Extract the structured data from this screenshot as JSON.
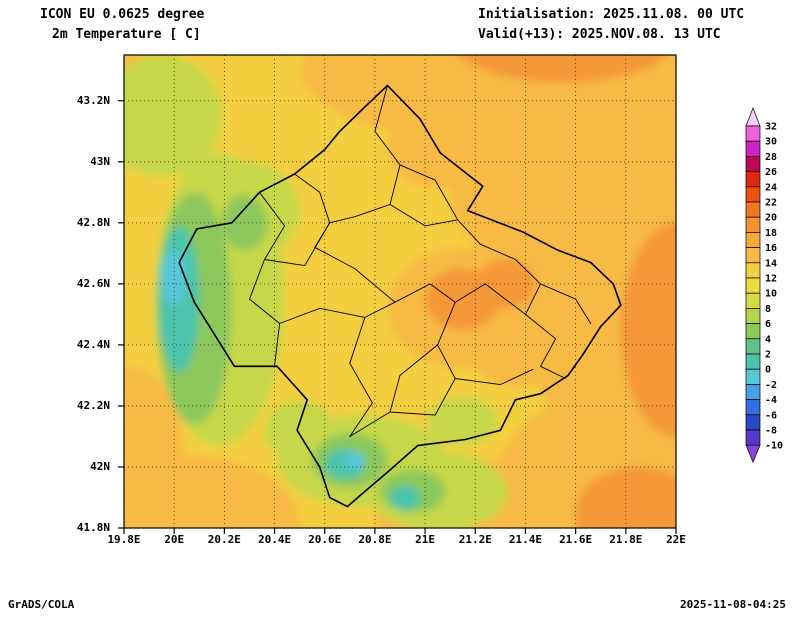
{
  "header": {
    "title_line1": "ICON EU 0.0625 degree",
    "title_line2": "2m Temperature [ C]",
    "init_line": "Initialisation: 2025.11.08. 00 UTC",
    "valid_line": "Valid(+13): 2025.NOV.08. 13 UTC"
  },
  "footer": {
    "left": "GrADS/COLA",
    "right": "2025-11-08-04:25"
  },
  "axes": {
    "lon_range": [
      19.8,
      22.0
    ],
    "lat_range": [
      41.8,
      43.35
    ],
    "lat_ticks": [
      {
        "label": "43.2N",
        "value": 43.2
      },
      {
        "label": "43N",
        "value": 43.0
      },
      {
        "label": "42.8N",
        "value": 42.8
      },
      {
        "label": "42.6N",
        "value": 42.6
      },
      {
        "label": "42.4N",
        "value": 42.4
      },
      {
        "label": "42.2N",
        "value": 42.2
      },
      {
        "label": "42N",
        "value": 42.0
      },
      {
        "label": "41.8N",
        "value": 41.8
      }
    ],
    "lon_ticks": [
      {
        "label": "19.8E",
        "value": 19.8
      },
      {
        "label": "20E",
        "value": 20.0
      },
      {
        "label": "20.2E",
        "value": 20.2
      },
      {
        "label": "20.4E",
        "value": 20.4
      },
      {
        "label": "20.6E",
        "value": 20.6
      },
      {
        "label": "20.8E",
        "value": 20.8
      },
      {
        "label": "21E",
        "value": 21.0
      },
      {
        "label": "21.2E",
        "value": 21.2
      },
      {
        "label": "21.4E",
        "value": 21.4
      },
      {
        "label": "21.6E",
        "value": 21.6
      },
      {
        "label": "21.8E",
        "value": 21.8
      },
      {
        "label": "22E",
        "value": 22.0
      }
    ]
  },
  "colorbar": {
    "labels": [
      "32",
      "30",
      "28",
      "26",
      "24",
      "22",
      "20",
      "18",
      "16",
      "14",
      "12",
      "10",
      "8",
      "6",
      "4",
      "2",
      "0",
      "-2",
      "-4",
      "-6",
      "-8",
      "-10"
    ],
    "top_triangle_color": "#f8ccf8",
    "bottom_triangle_color": "#8844d8",
    "segments": [
      {
        "from": 30,
        "to": 32,
        "color": "#f060d8"
      },
      {
        "from": 28,
        "to": 30,
        "color": "#cc22cc"
      },
      {
        "from": 26,
        "to": 28,
        "color": "#c00858"
      },
      {
        "from": 24,
        "to": 26,
        "color": "#e02810"
      },
      {
        "from": 22,
        "to": 24,
        "color": "#ee5014"
      },
      {
        "from": 20,
        "to": 22,
        "color": "#f07820"
      },
      {
        "from": 18,
        "to": 20,
        "color": "#f39030"
      },
      {
        "from": 16,
        "to": 18,
        "color": "#f7a83c"
      },
      {
        "from": 14,
        "to": 16,
        "color": "#f7ba44"
      },
      {
        "from": 12,
        "to": 14,
        "color": "#f3cf40"
      },
      {
        "from": 10,
        "to": 12,
        "color": "#ecdc3c"
      },
      {
        "from": 8,
        "to": 10,
        "color": "#d6da44"
      },
      {
        "from": 6,
        "to": 8,
        "color": "#b4d44e"
      },
      {
        "from": 4,
        "to": 6,
        "color": "#8cc85c"
      },
      {
        "from": 2,
        "to": 4,
        "color": "#64c088"
      },
      {
        "from": 0,
        "to": 2,
        "color": "#4cc4ac"
      },
      {
        "from": -2,
        "to": 0,
        "color": "#58c8d8"
      },
      {
        "from": -4,
        "to": -2,
        "color": "#48a0e8"
      },
      {
        "from": -6,
        "to": -4,
        "color": "#3070e0"
      },
      {
        "from": -8,
        "to": -6,
        "color": "#2848c8"
      },
      {
        "from": -10,
        "to": -8,
        "color": "#5838c8"
      }
    ]
  },
  "map": {
    "base_color": "#f3cf40",
    "blobs": [
      {
        "lon": 20.8,
        "lat": 43.32,
        "rx": 0.28,
        "ry": 0.16,
        "color": "#f7ba44"
      },
      {
        "lon": 21.4,
        "lat": 43.3,
        "rx": 0.9,
        "ry": 0.25,
        "color": "#f7ba44"
      },
      {
        "lon": 19.85,
        "lat": 43.33,
        "rx": 0.16,
        "ry": 0.09,
        "color": "#f7ba44"
      },
      {
        "lon": 21.95,
        "lat": 42.6,
        "rx": 0.55,
        "ry": 0.75,
        "color": "#f7ba44"
      },
      {
        "lon": 21.45,
        "lat": 42.9,
        "rx": 0.35,
        "ry": 0.25,
        "color": "#f7ba44"
      },
      {
        "lon": 21.05,
        "lat": 43.05,
        "rx": 0.2,
        "ry": 0.14,
        "color": "#f7ba44"
      },
      {
        "lon": 21.15,
        "lat": 42.52,
        "rx": 0.3,
        "ry": 0.2,
        "color": "#f7ba44"
      },
      {
        "lon": 21.38,
        "lat": 42.42,
        "rx": 0.22,
        "ry": 0.16,
        "color": "#f7ba44"
      },
      {
        "lon": 21.78,
        "lat": 41.95,
        "rx": 0.5,
        "ry": 0.3,
        "color": "#f7ba44"
      },
      {
        "lon": 21.2,
        "lat": 41.85,
        "rx": 0.4,
        "ry": 0.18,
        "color": "#f7ba44"
      },
      {
        "lon": 20.05,
        "lat": 41.82,
        "rx": 0.45,
        "ry": 0.22,
        "color": "#f7ba44"
      },
      {
        "lon": 19.82,
        "lat": 42.05,
        "rx": 0.22,
        "ry": 0.28,
        "color": "#f7ba44"
      },
      {
        "lon": 21.55,
        "lat": 43.4,
        "rx": 0.45,
        "ry": 0.14,
        "color": "#f49838"
      },
      {
        "lon": 21.15,
        "lat": 42.55,
        "rx": 0.15,
        "ry": 0.1,
        "color": "#f49838"
      },
      {
        "lon": 21.32,
        "lat": 42.6,
        "rx": 0.12,
        "ry": 0.08,
        "color": "#f49838"
      },
      {
        "lon": 22.0,
        "lat": 42.45,
        "rx": 0.22,
        "ry": 0.35,
        "color": "#f49838"
      },
      {
        "lon": 21.85,
        "lat": 41.85,
        "rx": 0.25,
        "ry": 0.15,
        "color": "#f49838"
      },
      {
        "lon": 20.18,
        "lat": 42.55,
        "rx": 0.26,
        "ry": 0.48,
        "color": "#c6d74a"
      },
      {
        "lon": 20.3,
        "lat": 42.84,
        "rx": 0.2,
        "ry": 0.16,
        "color": "#c6d74a"
      },
      {
        "lon": 19.95,
        "lat": 43.15,
        "rx": 0.24,
        "ry": 0.2,
        "color": "#c6d74a"
      },
      {
        "lon": 20.75,
        "lat": 42.02,
        "rx": 0.34,
        "ry": 0.15,
        "color": "#c6d74a"
      },
      {
        "lon": 21.05,
        "lat": 41.92,
        "rx": 0.28,
        "ry": 0.13,
        "color": "#c6d74a"
      },
      {
        "lon": 20.5,
        "lat": 42.12,
        "rx": 0.14,
        "ry": 0.1,
        "color": "#c6d74a"
      },
      {
        "lon": 21.15,
        "lat": 42.15,
        "rx": 0.14,
        "ry": 0.08,
        "color": "#c6d74a"
      },
      {
        "lon": 20.08,
        "lat": 42.52,
        "rx": 0.15,
        "ry": 0.38,
        "color": "#8cc85c"
      },
      {
        "lon": 20.28,
        "lat": 42.8,
        "rx": 0.09,
        "ry": 0.09,
        "color": "#8cc85c"
      },
      {
        "lon": 20.7,
        "lat": 42.02,
        "rx": 0.15,
        "ry": 0.09,
        "color": "#8cc85c"
      },
      {
        "lon": 20.95,
        "lat": 41.92,
        "rx": 0.13,
        "ry": 0.07,
        "color": "#8cc85c"
      },
      {
        "lon": 20.02,
        "lat": 42.55,
        "rx": 0.08,
        "ry": 0.24,
        "color": "#4cc4ac"
      },
      {
        "lon": 20.68,
        "lat": 42.01,
        "rx": 0.08,
        "ry": 0.05,
        "color": "#4cc4ac"
      },
      {
        "lon": 20.92,
        "lat": 41.9,
        "rx": 0.06,
        "ry": 0.04,
        "color": "#4cc4ac"
      },
      {
        "lon": 20.0,
        "lat": 42.62,
        "rx": 0.05,
        "ry": 0.09,
        "color": "#58c8d8"
      },
      {
        "lon": 20.72,
        "lat": 42.02,
        "rx": 0.04,
        "ry": 0.03,
        "color": "#58c8d8"
      }
    ],
    "border": [
      [
        20.85,
        43.25
      ],
      [
        20.98,
        43.14
      ],
      [
        21.06,
        43.03
      ],
      [
        21.23,
        42.92
      ],
      [
        21.17,
        42.84
      ],
      [
        21.39,
        42.77
      ],
      [
        21.53,
        42.71
      ],
      [
        21.66,
        42.67
      ],
      [
        21.75,
        42.6
      ],
      [
        21.78,
        42.53
      ],
      [
        21.7,
        42.46
      ],
      [
        21.63,
        42.37
      ],
      [
        21.57,
        42.3
      ],
      [
        21.46,
        42.24
      ],
      [
        21.36,
        42.22
      ],
      [
        21.3,
        42.12
      ],
      [
        21.16,
        42.09
      ],
      [
        20.97,
        42.07
      ],
      [
        20.86,
        41.99
      ],
      [
        20.76,
        41.92
      ],
      [
        20.69,
        41.87
      ],
      [
        20.62,
        41.9
      ],
      [
        20.58,
        42.0
      ],
      [
        20.49,
        42.12
      ],
      [
        20.53,
        42.22
      ],
      [
        20.41,
        42.33
      ],
      [
        20.24,
        42.33
      ],
      [
        20.08,
        42.54
      ],
      [
        20.02,
        42.67
      ],
      [
        20.09,
        42.78
      ],
      [
        20.23,
        42.8
      ],
      [
        20.34,
        42.9
      ],
      [
        20.48,
        42.96
      ],
      [
        20.6,
        43.04
      ],
      [
        20.66,
        43.1
      ],
      [
        20.76,
        43.18
      ]
    ],
    "internal_borders": [
      [
        [
          20.85,
          43.25
        ],
        [
          20.8,
          43.1
        ],
        [
          20.9,
          42.99
        ],
        [
          20.86,
          42.86
        ]
      ],
      [
        [
          20.48,
          42.96
        ],
        [
          20.58,
          42.9
        ],
        [
          20.62,
          42.8
        ],
        [
          20.56,
          42.72
        ]
      ],
      [
        [
          20.86,
          42.86
        ],
        [
          20.72,
          42.82
        ],
        [
          20.62,
          42.8
        ]
      ],
      [
        [
          20.34,
          42.9
        ],
        [
          20.44,
          42.79
        ],
        [
          20.36,
          42.68
        ]
      ],
      [
        [
          20.36,
          42.68
        ],
        [
          20.52,
          42.66
        ],
        [
          20.62,
          42.8
        ]
      ],
      [
        [
          20.36,
          42.68
        ],
        [
          20.3,
          42.55
        ],
        [
          20.42,
          42.47
        ]
      ],
      [
        [
          20.42,
          42.47
        ],
        [
          20.58,
          42.52
        ],
        [
          20.76,
          42.49
        ],
        [
          20.88,
          42.54
        ]
      ],
      [
        [
          20.56,
          42.72
        ],
        [
          20.72,
          42.65
        ],
        [
          20.88,
          42.54
        ]
      ],
      [
        [
          20.88,
          42.54
        ],
        [
          21.02,
          42.6
        ],
        [
          21.12,
          42.54
        ],
        [
          21.24,
          42.6
        ]
      ],
      [
        [
          20.86,
          42.86
        ],
        [
          21.0,
          42.79
        ],
        [
          21.13,
          42.81
        ],
        [
          21.22,
          42.73
        ]
      ],
      [
        [
          21.22,
          42.73
        ],
        [
          21.36,
          42.68
        ],
        [
          21.46,
          42.6
        ],
        [
          21.4,
          42.5
        ]
      ],
      [
        [
          21.24,
          42.6
        ],
        [
          21.4,
          42.5
        ]
      ],
      [
        [
          20.42,
          42.47
        ],
        [
          20.4,
          42.33
        ]
      ],
      [
        [
          20.76,
          42.49
        ],
        [
          20.7,
          42.34
        ],
        [
          20.79,
          42.21
        ],
        [
          20.7,
          42.1
        ]
      ],
      [
        [
          21.12,
          42.54
        ],
        [
          21.05,
          42.4
        ],
        [
          21.12,
          42.29
        ],
        [
          21.04,
          42.17
        ]
      ],
      [
        [
          21.4,
          42.5
        ],
        [
          21.52,
          42.42
        ],
        [
          21.46,
          42.33
        ],
        [
          21.56,
          42.29
        ]
      ],
      [
        [
          21.05,
          42.4
        ],
        [
          20.9,
          42.3
        ],
        [
          20.86,
          42.18
        ]
      ],
      [
        [
          21.12,
          42.29
        ],
        [
          21.3,
          42.27
        ],
        [
          21.43,
          42.32
        ]
      ],
      [
        [
          20.9,
          42.99
        ],
        [
          21.04,
          42.94
        ],
        [
          21.13,
          42.81
        ]
      ],
      [
        [
          20.7,
          42.1
        ],
        [
          20.86,
          42.18
        ],
        [
          21.04,
          42.17
        ]
      ],
      [
        [
          21.46,
          42.6
        ],
        [
          21.6,
          42.55
        ],
        [
          21.66,
          42.47
        ]
      ]
    ]
  }
}
